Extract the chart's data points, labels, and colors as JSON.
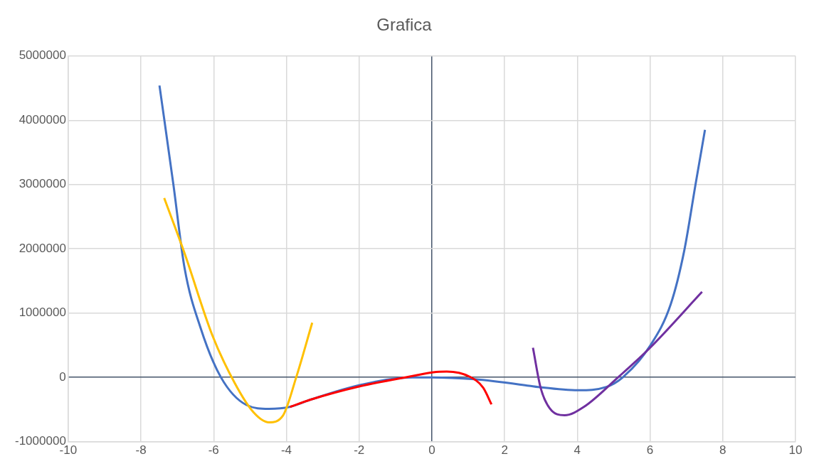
{
  "chart_data": {
    "type": "line",
    "title": "Grafica",
    "xlim": [
      -10,
      10
    ],
    "xticks": [
      -10,
      -8,
      -6,
      -4,
      -2,
      0,
      2,
      4,
      6,
      8,
      10
    ],
    "ylim": [
      -1000000,
      5000000
    ],
    "yticks": [
      -1000000,
      0,
      1000000,
      2000000,
      3000000,
      4000000,
      5000000
    ],
    "grid": true,
    "legend": false,
    "marker": "none",
    "line_style": "solid",
    "series": [
      {
        "color": "#4472c4",
        "x": [
          -7.49,
          -7.11,
          -6.8,
          -6.36,
          -5.8,
          -5.1,
          -4.48,
          -3.91,
          -3.35,
          -1.98,
          -0.53,
          0,
          1.17,
          2.67,
          2.92,
          4.02,
          4.8,
          5.25,
          6.0,
          6.57,
          6.94,
          7.25,
          7.51
        ],
        "values": [
          4540000,
          3010000,
          1700000,
          770000,
          0,
          -430000,
          -490000,
          -460000,
          -350000,
          -120000,
          0,
          0,
          -30000,
          -130000,
          -150000,
          -200000,
          -150000,
          0,
          490000,
          1140000,
          1970000,
          3000000,
          3850000
        ]
      },
      {
        "color": "#ffc000",
        "x": [
          -7.36,
          -6.8,
          -6.04,
          -5.42,
          -4.91,
          -4.48,
          -4.1,
          -3.73,
          -3.29
        ],
        "values": [
          2790000,
          1930000,
          660000,
          -90000,
          -540000,
          -700000,
          -600000,
          0,
          850000
        ]
      },
      {
        "color": "#ff0000",
        "x": [
          -3.9,
          -3.35,
          -1.98,
          -0.53,
          0.04,
          0.41,
          1.04,
          1.41,
          1.64
        ],
        "values": [
          -460000,
          -350000,
          -140000,
          20000,
          80000,
          90000,
          10000,
          -160000,
          -420000
        ]
      },
      {
        "color": "#7030a0",
        "x": [
          2.78,
          2.99,
          3.24,
          3.65,
          4.18,
          5.12,
          6.0,
          7.43
        ],
        "values": [
          460000,
          -160000,
          -480000,
          -590000,
          -460000,
          0,
          460000,
          1330000
        ]
      }
    ]
  }
}
